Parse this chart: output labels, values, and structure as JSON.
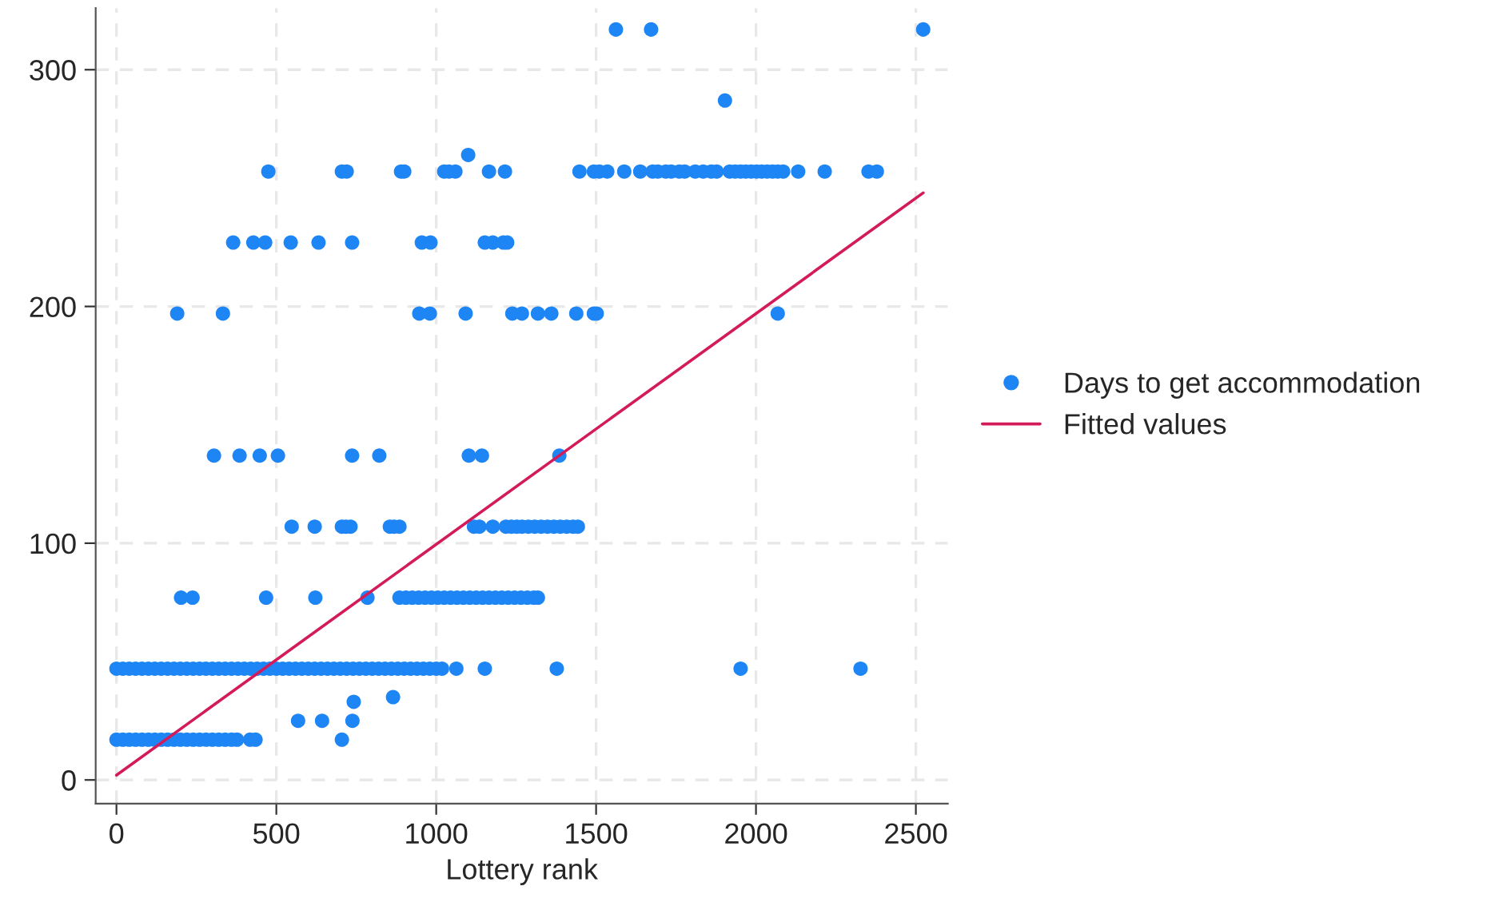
{
  "chart_data": {
    "type": "scatter",
    "xlabel": "Lottery rank",
    "xlim": [
      -65,
      2600
    ],
    "ylim": [
      -10,
      326
    ],
    "xticks": [
      0,
      500,
      1000,
      1500,
      2000,
      2500
    ],
    "yticks": [
      0,
      100,
      200,
      300
    ],
    "grid": true,
    "legend": "right",
    "series": [
      {
        "name": "Days to get accommodation",
        "marker": "circle",
        "color": "#1e85f5",
        "x": [
          0,
          20,
          40,
          60,
          80,
          100,
          120,
          140,
          160,
          180,
          200,
          220,
          240,
          260,
          280,
          300,
          320,
          340,
          360,
          377,
          418,
          435,
          705,
          0,
          20,
          40,
          60,
          80,
          100,
          120,
          140,
          160,
          180,
          200,
          220,
          240,
          260,
          280,
          300,
          320,
          340,
          360,
          380,
          400,
          420,
          440,
          460,
          480,
          500,
          520,
          540,
          560,
          580,
          600,
          620,
          640,
          660,
          680,
          700,
          720,
          740,
          760,
          780,
          800,
          820,
          840,
          860,
          880,
          900,
          920,
          940,
          960,
          980,
          1000,
          1018,
          1063,
          1152,
          1377,
          1952,
          2327,
          202,
          238,
          468,
          622,
          785,
          885,
          905,
          925,
          945,
          965,
          985,
          1005,
          1025,
          1045,
          1065,
          1085,
          1105,
          1125,
          1145,
          1165,
          1185,
          1205,
          1225,
          1245,
          1265,
          1285,
          1305,
          1318,
          548,
          620,
          705,
          718,
          732,
          855,
          868,
          885,
          1118,
          1135,
          1177,
          1218,
          1235,
          1252,
          1268,
          1288,
          1308,
          1328,
          1348,
          1368,
          1388,
          1408,
          1428,
          1443,
          305,
          385,
          448,
          505,
          737,
          822,
          1102,
          1143,
          1385,
          190,
          333,
          947,
          980,
          1092,
          1238,
          1268,
          1318,
          1360,
          1438,
          1493,
          1502,
          2068,
          365,
          428,
          465,
          545,
          632,
          737,
          955,
          982,
          1152,
          1177,
          1210,
          1222,
          475,
          705,
          720,
          890,
          900,
          1025,
          1040,
          1060,
          1165,
          1215,
          1448,
          1493,
          1510,
          1535,
          1588,
          1638,
          1677,
          1693,
          1718,
          1735,
          1760,
          1777,
          1810,
          1835,
          1860,
          1877,
          1918,
          1935,
          1952,
          1968,
          1985,
          2002,
          2018,
          2035,
          2052,
          2068,
          2085,
          2132,
          2215,
          2352,
          2378,
          1100,
          1903,
          1562,
          1672,
          2523,
          568,
          643,
          742,
          738,
          865
        ],
        "values": [
          17,
          17,
          17,
          17,
          17,
          17,
          17,
          17,
          17,
          17,
          17,
          17,
          17,
          17,
          17,
          17,
          17,
          17,
          17,
          17,
          17,
          17,
          17,
          47,
          47,
          47,
          47,
          47,
          47,
          47,
          47,
          47,
          47,
          47,
          47,
          47,
          47,
          47,
          47,
          47,
          47,
          47,
          47,
          47,
          47,
          47,
          47,
          47,
          47,
          47,
          47,
          47,
          47,
          47,
          47,
          47,
          47,
          47,
          47,
          47,
          47,
          47,
          47,
          47,
          47,
          47,
          47,
          47,
          47,
          47,
          47,
          47,
          47,
          47,
          47,
          47,
          47,
          47,
          47,
          47,
          77,
          77,
          77,
          77,
          77,
          77,
          77,
          77,
          77,
          77,
          77,
          77,
          77,
          77,
          77,
          77,
          77,
          77,
          77,
          77,
          77,
          77,
          77,
          77,
          77,
          77,
          77,
          77,
          107,
          107,
          107,
          107,
          107,
          107,
          107,
          107,
          107,
          107,
          107,
          107,
          107,
          107,
          107,
          107,
          107,
          107,
          107,
          107,
          107,
          107,
          107,
          107,
          137,
          137,
          137,
          137,
          137,
          137,
          137,
          137,
          137,
          197,
          197,
          197,
          197,
          197,
          197,
          197,
          197,
          197,
          197,
          197,
          197,
          197,
          227,
          227,
          227,
          227,
          227,
          227,
          227,
          227,
          227,
          227,
          227,
          227,
          257,
          257,
          257,
          257,
          257,
          257,
          257,
          257,
          257,
          257,
          257,
          257,
          257,
          257,
          257,
          257,
          257,
          257,
          257,
          257,
          257,
          257,
          257,
          257,
          257,
          257,
          257,
          257,
          257,
          257,
          257,
          257,
          257,
          257,
          257,
          257,
          257,
          257,
          257,
          257,
          257,
          264,
          287,
          317,
          317,
          317,
          25,
          25,
          33,
          25,
          35
        ]
      },
      {
        "name": "Fitted values",
        "type": "line",
        "line_style": "solid",
        "color": "#d31a5a",
        "x": [
          0,
          2523
        ],
        "values": [
          2,
          248
        ]
      }
    ]
  }
}
